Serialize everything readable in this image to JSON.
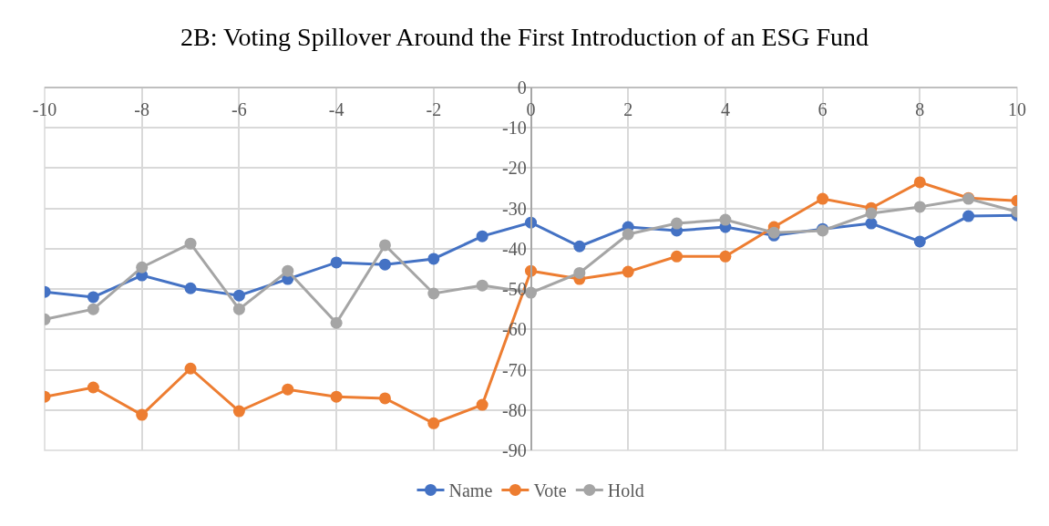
{
  "chart_data": {
    "type": "line",
    "title": "2B: Voting Spillover Around the First Introduction of an ESG Fund",
    "x": [
      -10,
      -9,
      -8,
      -7,
      -6,
      -5,
      -4,
      -3,
      -2,
      -1,
      0,
      1,
      2,
      3,
      4,
      5,
      6,
      7,
      8,
      9,
      10
    ],
    "series": [
      {
        "name": "Name",
        "color": "#4472c4",
        "values": [
          -50.7,
          -52,
          -46.6,
          -49.8,
          -51.6,
          -47.5,
          -43.4,
          -43.9,
          -42.5,
          -36.9,
          -33.5,
          -39.4,
          -34.6,
          -35.5,
          -34.6,
          -36.7,
          -35.1,
          -33.7,
          -38.2,
          -31.9,
          -31.7
        ]
      },
      {
        "name": "Vote",
        "color": "#ed7d31",
        "values": [
          -76.7,
          -74.4,
          -81.2,
          -69.7,
          -80.3,
          -74.9,
          -76.7,
          -77.1,
          -83.3,
          -78.7,
          -45.5,
          -47.5,
          -45.7,
          -41.9,
          -41.9,
          -34.6,
          -27.6,
          -29.9,
          -23.5,
          -27.4,
          -28.1
        ]
      },
      {
        "name": "Hold",
        "color": "#a5a5a5",
        "values": [
          -57.5,
          -55,
          -44.6,
          -38.7,
          -55,
          -45.5,
          -58.4,
          -39.1,
          -51.1,
          -49.1,
          -50.9,
          -46,
          -36.4,
          -33.7,
          -32.8,
          -36,
          -35.5,
          -31.2,
          -29.6,
          -27.6,
          -30.8
        ]
      }
    ],
    "xlim": [
      -10,
      10
    ],
    "xticks": [
      -10,
      -8,
      -6,
      -4,
      -2,
      0,
      2,
      4,
      6,
      8,
      10
    ],
    "ylim": [
      -90,
      0
    ],
    "yticks": [
      0,
      -10,
      -20,
      -30,
      -40,
      -50,
      -60,
      -70,
      -80,
      -90
    ],
    "grid": true,
    "legend": "bottom",
    "marker": "circle",
    "line_style": "solid"
  }
}
